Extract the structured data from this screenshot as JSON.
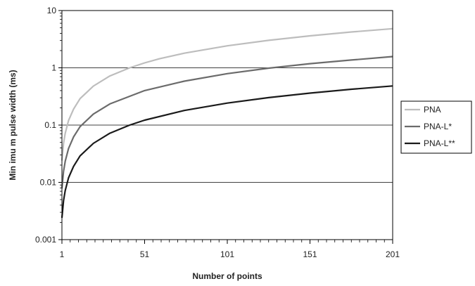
{
  "chart_data": {
    "type": "line",
    "title": "",
    "xlabel": "Number of points",
    "ylabel": "Min imu m  pulse width (ms)",
    "y_scale": "log",
    "xlim": [
      1,
      201
    ],
    "ylim": [
      0.001,
      10
    ],
    "x_ticks": [
      1,
      51,
      101,
      151,
      201
    ],
    "x_tick_labels": [
      "1",
      "51",
      "101",
      "151",
      "201"
    ],
    "y_ticks": [
      0.001,
      0.01,
      0.1,
      1,
      10
    ],
    "y_tick_labels": [
      "0.001",
      "0.01",
      "0.1",
      "1",
      "10"
    ],
    "grid": "horizontal",
    "legend_position": "right",
    "series": [
      {
        "name": "PNA",
        "color": "#bdbdbd",
        "x": [
          1,
          2,
          3,
          5,
          8,
          12,
          20,
          30,
          42,
          51,
          60,
          75,
          101,
          126,
          151,
          176,
          201
        ],
        "values": [
          0.024,
          0.048,
          0.072,
          0.12,
          0.19,
          0.29,
          0.48,
          0.72,
          1.0,
          1.22,
          1.44,
          1.8,
          2.42,
          3.02,
          3.62,
          4.22,
          4.82
        ]
      },
      {
        "name": "PNA-L*",
        "color": "#6b6b6b",
        "x": [
          1,
          2,
          3,
          5,
          8,
          12,
          20,
          30,
          51,
          75,
          101,
          126,
          151,
          176,
          201
        ],
        "values": [
          0.0078,
          0.0156,
          0.0234,
          0.039,
          0.062,
          0.094,
          0.156,
          0.234,
          0.4,
          0.585,
          0.79,
          0.985,
          1.18,
          1.37,
          1.57
        ]
      },
      {
        "name": "PNA-L**",
        "color": "#1a1a1a",
        "x": [
          1,
          2,
          3,
          5,
          8,
          12,
          20,
          30,
          42,
          51,
          75,
          101,
          126,
          151,
          176,
          201
        ],
        "values": [
          0.0024,
          0.0048,
          0.0072,
          0.012,
          0.019,
          0.029,
          0.048,
          0.072,
          0.1,
          0.122,
          0.18,
          0.242,
          0.302,
          0.362,
          0.422,
          0.482
        ]
      }
    ]
  }
}
